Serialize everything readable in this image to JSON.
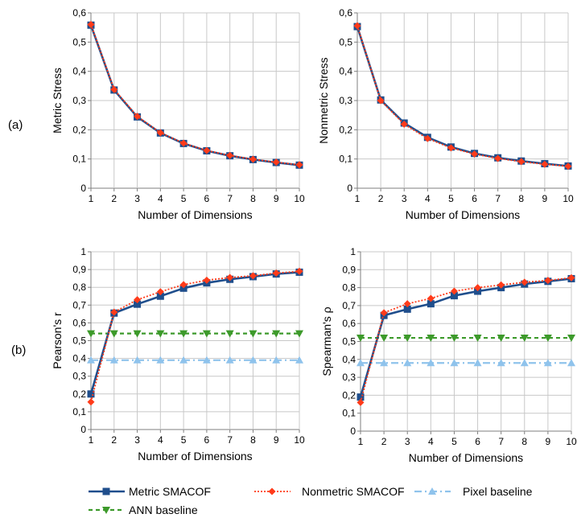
{
  "panel_labels": [
    "(a)",
    "(b)"
  ],
  "colors": {
    "metric": "#1f4e8c",
    "nonmetric": "#ff3b1a",
    "pixel": "#8fc3ec",
    "ann": "#3d9a2b",
    "grid": "#c8c8c8",
    "axis": "#7f7f7f"
  },
  "legend": {
    "items": [
      {
        "key": "metric",
        "label": "Metric SMACOF"
      },
      {
        "key": "nonmetric",
        "label": "Nonmetric SMACOF"
      },
      {
        "key": "pixel",
        "label": "Pixel baseline"
      },
      {
        "key": "ann",
        "label": "ANN baseline"
      }
    ]
  },
  "chart_data": [
    {
      "type": "line",
      "xlabel": "Number of Dimensions",
      "ylabel": "Metric Stress",
      "x": [
        1,
        2,
        3,
        4,
        5,
        6,
        7,
        8,
        9,
        10
      ],
      "xticks": [
        "1",
        "2",
        "3",
        "4",
        "5",
        "6",
        "7",
        "8",
        "9",
        "10"
      ],
      "ylim": [
        0,
        0.6
      ],
      "yticks": [
        "0",
        "0,1",
        "0,2",
        "0,3",
        "0,4",
        "0,5",
        "0,6"
      ],
      "grid": true,
      "series": [
        {
          "name": "Metric SMACOF",
          "key": "metric",
          "values": [
            0.558,
            0.336,
            0.244,
            0.189,
            0.153,
            0.128,
            0.111,
            0.098,
            0.088,
            0.079
          ]
        },
        {
          "name": "Nonmetric SMACOF",
          "key": "nonmetric",
          "values": [
            0.56,
            0.338,
            0.246,
            0.19,
            0.154,
            0.129,
            0.112,
            0.099,
            0.089,
            0.08
          ]
        }
      ]
    },
    {
      "type": "line",
      "xlabel": "Number of Dimensions",
      "ylabel": "Nonmetric Stress",
      "x": [
        1,
        2,
        3,
        4,
        5,
        6,
        7,
        8,
        9,
        10
      ],
      "xticks": [
        "1",
        "2",
        "3",
        "4",
        "5",
        "6",
        "7",
        "8",
        "9",
        "10"
      ],
      "ylim": [
        0,
        0.6
      ],
      "yticks": [
        "0",
        "0,1",
        "0,2",
        "0,3",
        "0,4",
        "0,5",
        "0,6"
      ],
      "grid": true,
      "series": [
        {
          "name": "Metric SMACOF",
          "key": "metric",
          "values": [
            0.553,
            0.302,
            0.223,
            0.174,
            0.141,
            0.119,
            0.104,
            0.093,
            0.084,
            0.076
          ]
        },
        {
          "name": "Nonmetric SMACOF",
          "key": "nonmetric",
          "values": [
            0.556,
            0.3,
            0.219,
            0.17,
            0.138,
            0.117,
            0.102,
            0.091,
            0.082,
            0.075
          ]
        }
      ]
    },
    {
      "type": "line",
      "xlabel": "Number of Dimensions",
      "ylabel": "Pearson's r",
      "x": [
        1,
        2,
        3,
        4,
        5,
        6,
        7,
        8,
        9,
        10
      ],
      "xticks": [
        "1",
        "2",
        "3",
        "4",
        "5",
        "6",
        "7",
        "8",
        "9",
        "10"
      ],
      "ylim": [
        0,
        1
      ],
      "yticks": [
        "0",
        "0,1",
        "0,2",
        "0,3",
        "0,4",
        "0,5",
        "0,6",
        "0,7",
        "0,8",
        "0,9",
        "1"
      ],
      "grid": true,
      "series": [
        {
          "name": "Metric SMACOF",
          "key": "metric",
          "values": [
            0.2,
            0.655,
            0.705,
            0.75,
            0.795,
            0.825,
            0.845,
            0.86,
            0.875,
            0.885
          ]
        },
        {
          "name": "Nonmetric SMACOF",
          "key": "nonmetric",
          "values": [
            0.155,
            0.66,
            0.73,
            0.775,
            0.815,
            0.84,
            0.855,
            0.865,
            0.88,
            0.89
          ]
        },
        {
          "name": "Pixel baseline",
          "key": "pixel",
          "values": [
            0.39,
            0.39,
            0.39,
            0.39,
            0.39,
            0.39,
            0.39,
            0.39,
            0.39,
            0.39
          ]
        },
        {
          "name": "ANN baseline",
          "key": "ann",
          "values": [
            0.54,
            0.54,
            0.54,
            0.54,
            0.54,
            0.54,
            0.54,
            0.54,
            0.54,
            0.54
          ]
        }
      ]
    },
    {
      "type": "line",
      "xlabel": "Number of Dimensions",
      "ylabel": "Spearman's ρ",
      "x": [
        1,
        2,
        3,
        4,
        5,
        6,
        7,
        8,
        9,
        10
      ],
      "xticks": [
        "1",
        "2",
        "3",
        "4",
        "5",
        "6",
        "7",
        "8",
        "9",
        "10"
      ],
      "ylim": [
        0,
        1
      ],
      "yticks": [
        "0",
        "0,1",
        "0,2",
        "0,3",
        "0,4",
        "0,5",
        "0,6",
        "0,7",
        "0,8",
        "0,9",
        "1"
      ],
      "grid": true,
      "series": [
        {
          "name": "Metric SMACOF",
          "key": "metric",
          "values": [
            0.19,
            0.645,
            0.68,
            0.71,
            0.755,
            0.78,
            0.8,
            0.82,
            0.835,
            0.85
          ]
        },
        {
          "name": "Nonmetric SMACOF",
          "key": "nonmetric",
          "values": [
            0.16,
            0.66,
            0.71,
            0.74,
            0.78,
            0.8,
            0.815,
            0.83,
            0.84,
            0.855
          ]
        },
        {
          "name": "Pixel baseline",
          "key": "pixel",
          "values": [
            0.38,
            0.38,
            0.38,
            0.38,
            0.38,
            0.38,
            0.38,
            0.38,
            0.38,
            0.38
          ]
        },
        {
          "name": "ANN baseline",
          "key": "ann",
          "values": [
            0.52,
            0.52,
            0.52,
            0.52,
            0.52,
            0.52,
            0.52,
            0.52,
            0.52,
            0.52
          ]
        }
      ]
    }
  ]
}
